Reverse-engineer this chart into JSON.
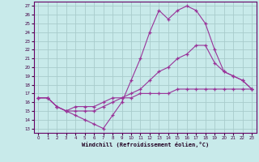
{
  "bg_color": "#c8eaea",
  "grid_color": "#a8cccc",
  "line_color": "#993399",
  "xlim_min": -0.5,
  "xlim_max": 23.5,
  "ylim_min": 12.5,
  "ylim_max": 27.5,
  "xticks": [
    0,
    1,
    2,
    3,
    4,
    5,
    6,
    7,
    8,
    9,
    10,
    11,
    12,
    13,
    14,
    15,
    16,
    17,
    18,
    19,
    20,
    21,
    22,
    23
  ],
  "yticks": [
    13,
    14,
    15,
    16,
    17,
    18,
    19,
    20,
    21,
    22,
    23,
    24,
    25,
    26,
    27
  ],
  "xlabel": "Windchill (Refroidissement éolien,°C)",
  "line1_x": [
    0,
    1,
    2,
    3,
    4,
    5,
    6,
    7,
    8,
    9,
    10,
    11,
    12,
    13,
    14,
    15,
    16,
    17,
    18,
    19,
    20,
    21,
    22,
    23
  ],
  "line1_y": [
    16.5,
    16.5,
    15.5,
    15.0,
    14.5,
    14.0,
    13.5,
    13.0,
    14.5,
    16.0,
    18.5,
    21.0,
    24.0,
    26.5,
    25.5,
    26.5,
    27.0,
    26.5,
    25.0,
    22.0,
    19.5,
    19.0,
    18.5,
    17.5
  ],
  "line2_x": [
    0,
    1,
    2,
    3,
    4,
    5,
    6,
    7,
    8,
    9,
    10,
    11,
    12,
    13,
    14,
    15,
    16,
    17,
    18,
    19,
    20,
    21,
    22,
    23
  ],
  "line2_y": [
    16.5,
    16.5,
    15.5,
    15.0,
    15.0,
    15.0,
    15.0,
    15.5,
    16.0,
    16.5,
    17.0,
    17.5,
    18.5,
    19.5,
    20.0,
    21.0,
    21.5,
    22.5,
    22.5,
    20.5,
    19.5,
    19.0,
    18.5,
    17.5
  ],
  "line3_x": [
    0,
    1,
    2,
    3,
    4,
    5,
    6,
    7,
    8,
    9,
    10,
    11,
    12,
    13,
    14,
    15,
    16,
    17,
    18,
    19,
    20,
    21,
    22,
    23
  ],
  "line3_y": [
    16.5,
    16.5,
    15.5,
    15.0,
    15.5,
    15.5,
    15.5,
    16.0,
    16.5,
    16.5,
    16.5,
    17.0,
    17.0,
    17.0,
    17.0,
    17.5,
    17.5,
    17.5,
    17.5,
    17.5,
    17.5,
    17.5,
    17.5,
    17.5
  ]
}
